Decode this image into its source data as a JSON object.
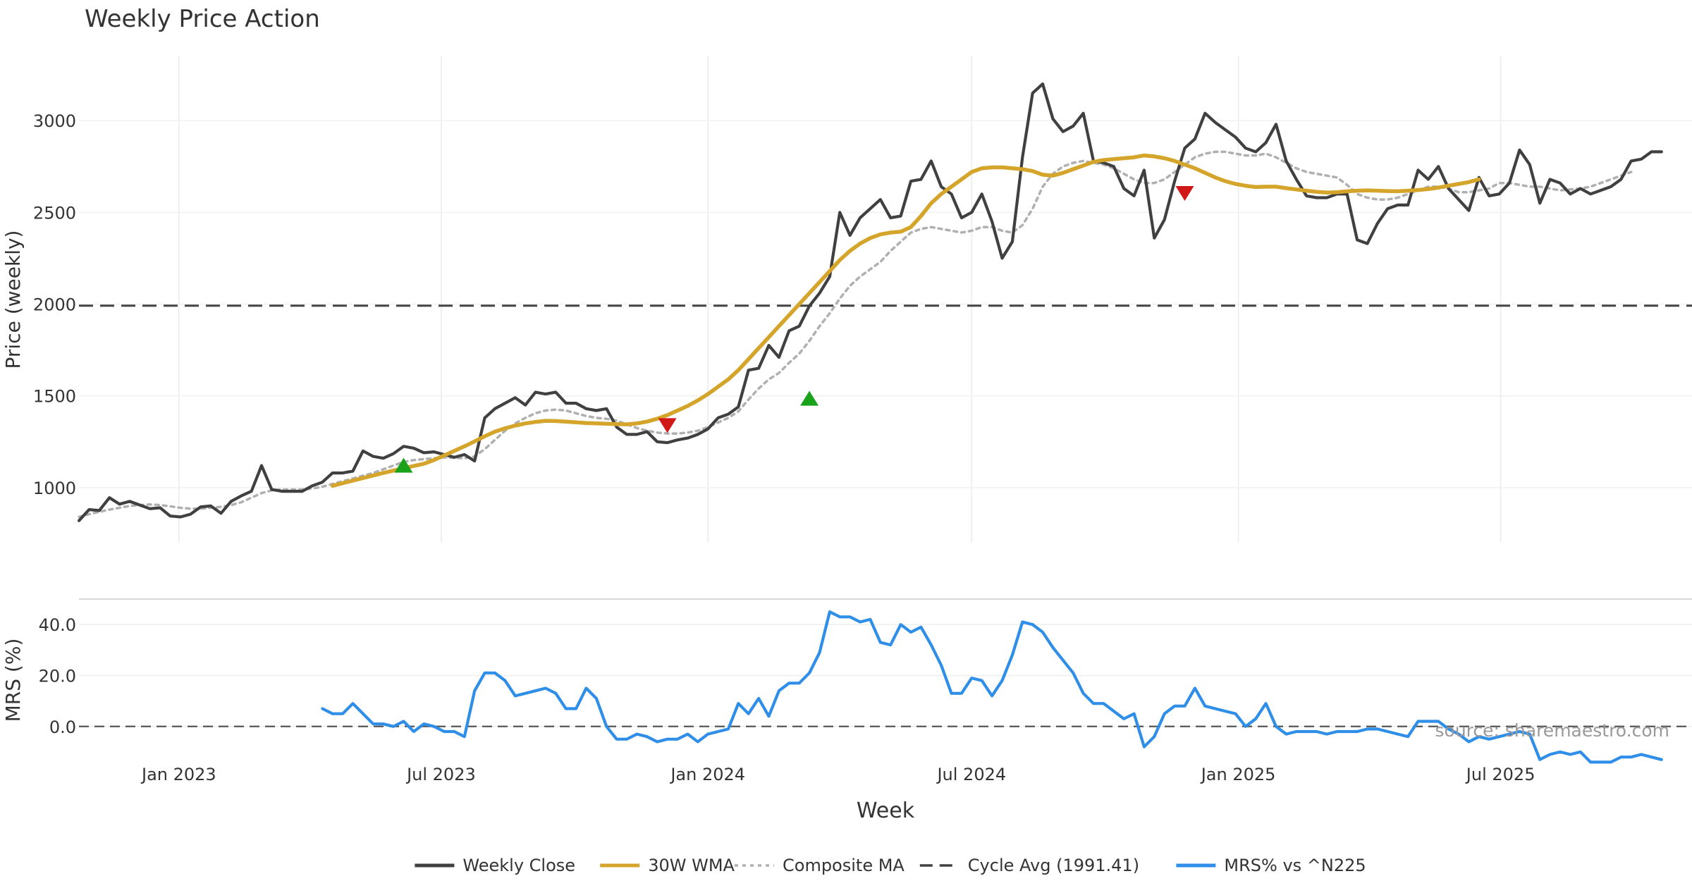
{
  "chart_data": {
    "type": "line",
    "title": "Weekly Price Action",
    "xlabel": "Week",
    "x_ticks": [
      "Jan 2023",
      "Jul 2023",
      "Jan 2024",
      "Jul 2024",
      "Jan 2025",
      "Jul 2025"
    ],
    "x_range": [
      "2022-10-24",
      "2025-11-10"
    ],
    "price_panel": {
      "ylabel": "Price (weekly)",
      "ylim": [
        700,
        3350
      ],
      "y_ticks": [
        "1000",
        "1500",
        "2000",
        "2500",
        "3000"
      ],
      "cycle_avg": 1991.41,
      "series": [
        {
          "name": "Weekly Close",
          "color": "#404040",
          "start": "2022-10-24",
          "values": [
            820,
            880,
            875,
            945,
            910,
            925,
            905,
            885,
            890,
            845,
            840,
            855,
            895,
            900,
            860,
            925,
            955,
            980,
            1120,
            990,
            980,
            980,
            980,
            1010,
            1030,
            1080,
            1080,
            1090,
            1200,
            1170,
            1160,
            1185,
            1225,
            1215,
            1190,
            1195,
            1180,
            1165,
            1180,
            1145,
            1380,
            1430,
            1460,
            1490,
            1450,
            1520,
            1510,
            1520,
            1460,
            1460,
            1430,
            1420,
            1430,
            1330,
            1290,
            1290,
            1305,
            1250,
            1245,
            1260,
            1270,
            1290,
            1320,
            1380,
            1400,
            1440,
            1640,
            1650,
            1775,
            1710,
            1855,
            1880,
            1990,
            2060,
            2150,
            2500,
            2375,
            2470,
            2520,
            2570,
            2470,
            2480,
            2670,
            2680,
            2780,
            2640,
            2600,
            2470,
            2500,
            2600,
            2450,
            2250,
            2340,
            2800,
            3150,
            3200,
            3010,
            2940,
            2970,
            3040,
            2780,
            2770,
            2750,
            2630,
            2590,
            2730,
            2360,
            2460,
            2670,
            2850,
            2900,
            3040,
            2990,
            2950,
            2910,
            2850,
            2830,
            2880,
            2980,
            2780,
            2680,
            2590,
            2580,
            2580,
            2600,
            2600,
            2350,
            2330,
            2440,
            2520,
            2540,
            2540,
            2730,
            2680,
            2750,
            2630,
            2570,
            2510,
            2690,
            2590,
            2600,
            2660,
            2840,
            2760,
            2550,
            2680,
            2660,
            2600,
            2630,
            2600,
            2620,
            2640,
            2680,
            2780,
            2790,
            2830,
            2830
          ]
        },
        {
          "name": "30W WMA",
          "color": "#d4a52a",
          "start": "2023-04-17",
          "values": [
            1010,
            1024,
            1038,
            1052,
            1066,
            1080,
            1093,
            1106,
            1118,
            1130,
            1150,
            1175,
            1200,
            1225,
            1252,
            1280,
            1305,
            1323,
            1338,
            1350,
            1358,
            1364,
            1363,
            1360,
            1356,
            1352,
            1350,
            1348,
            1346,
            1345,
            1350,
            1360,
            1375,
            1395,
            1420,
            1445,
            1475,
            1510,
            1550,
            1590,
            1640,
            1700,
            1760,
            1820,
            1880,
            1940,
            2000,
            2060,
            2120,
            2180,
            2240,
            2290,
            2330,
            2360,
            2380,
            2390,
            2395,
            2420,
            2480,
            2550,
            2600,
            2640,
            2680,
            2720,
            2740,
            2745,
            2745,
            2740,
            2735,
            2725,
            2705,
            2700,
            2715,
            2735,
            2755,
            2775,
            2785,
            2790,
            2795,
            2800,
            2810,
            2805,
            2795,
            2780,
            2760,
            2740,
            2715,
            2690,
            2670,
            2655,
            2645,
            2638,
            2640,
            2640,
            2632,
            2625,
            2618,
            2612,
            2608,
            2610,
            2615,
            2618,
            2620,
            2618,
            2616,
            2615,
            2618,
            2622,
            2627,
            2635,
            2645,
            2655,
            2665,
            2680
          ]
        },
        {
          "name": "Composite MA",
          "color": "#b0b0b0",
          "start": "2022-10-24",
          "values": [
            840,
            855,
            868,
            880,
            890,
            900,
            905,
            908,
            905,
            898,
            890,
            885,
            885,
            890,
            895,
            905,
            920,
            945,
            970,
            985,
            990,
            990,
            990,
            995,
            1005,
            1020,
            1035,
            1050,
            1065,
            1080,
            1100,
            1120,
            1140,
            1150,
            1155,
            1160,
            1165,
            1162,
            1160,
            1170,
            1210,
            1260,
            1310,
            1350,
            1380,
            1405,
            1420,
            1425,
            1420,
            1405,
            1390,
            1380,
            1375,
            1365,
            1345,
            1325,
            1310,
            1300,
            1295,
            1295,
            1300,
            1310,
            1330,
            1355,
            1380,
            1415,
            1480,
            1540,
            1590,
            1625,
            1680,
            1730,
            1800,
            1880,
            1950,
            2030,
            2100,
            2150,
            2190,
            2230,
            2290,
            2340,
            2390,
            2410,
            2420,
            2410,
            2400,
            2390,
            2400,
            2420,
            2420,
            2400,
            2390,
            2430,
            2520,
            2640,
            2710,
            2750,
            2770,
            2780,
            2770,
            2760,
            2740,
            2710,
            2680,
            2660,
            2660,
            2680,
            2720,
            2760,
            2800,
            2820,
            2830,
            2830,
            2820,
            2810,
            2810,
            2820,
            2800,
            2770,
            2740,
            2720,
            2710,
            2700,
            2690,
            2650,
            2600,
            2580,
            2570,
            2570,
            2580,
            2600,
            2620,
            2640,
            2640,
            2630,
            2610,
            2610,
            2620,
            2630,
            2660,
            2660,
            2650,
            2640,
            2640,
            2630,
            2620,
            2625,
            2630,
            2640,
            2660,
            2680,
            2700,
            2720
          ]
        }
      ],
      "buy_signals": [
        {
          "date": "2023-06-05",
          "value": 1120
        },
        {
          "date": "2024-03-11",
          "value": 1485
        }
      ],
      "sell_signals": [
        {
          "date": "2023-12-04",
          "value": 1340
        },
        {
          "date": "2024-11-25",
          "value": 2605
        }
      ]
    },
    "mrs_panel": {
      "ylabel": "MRS (%)",
      "ylim": [
        -15,
        50
      ],
      "y_ticks": [
        "0.0",
        "20.0",
        "40.0"
      ],
      "series": [
        {
          "name": "MRS% vs ^N225",
          "color": "#2f8ee8",
          "start": "2023-04-10",
          "values": [
            7,
            5,
            5,
            9,
            5,
            1,
            1,
            0,
            2,
            -2,
            1,
            0,
            -2,
            -2,
            -4,
            14,
            21,
            21,
            18,
            12,
            13,
            14,
            15,
            13,
            7,
            7,
            15,
            11,
            0,
            -5,
            -5,
            -3,
            -4,
            -6,
            -5,
            -5,
            -3,
            -6,
            -3,
            -2,
            -1,
            9,
            5,
            11,
            4,
            14,
            17,
            17,
            21,
            29,
            45,
            43,
            43,
            41,
            42,
            33,
            32,
            40,
            37,
            39,
            32,
            24,
            13,
            13,
            19,
            18,
            12,
            18,
            28,
            41,
            40,
            37,
            31,
            26,
            21,
            13,
            9,
            9,
            6,
            3,
            5,
            -8,
            -4,
            5,
            8,
            8,
            15,
            8,
            7,
            6,
            5,
            0,
            3,
            9,
            0,
            -3,
            -2,
            -2,
            -2,
            -3,
            -2,
            -2,
            -2,
            -1,
            -1,
            -2,
            -3,
            -4,
            2,
            2,
            2,
            -1,
            -3,
            -6,
            -4,
            -5,
            -4,
            -3,
            -2,
            -3,
            -13,
            -11,
            -10,
            -11,
            -10,
            -14,
            -14,
            -14,
            -12,
            -12,
            -11,
            -12,
            -13
          ]
        }
      ]
    },
    "legend": {
      "placement": "bottom-center",
      "entries": [
        {
          "label": "Weekly Close",
          "color": "#404040",
          "style": "solid"
        },
        {
          "label": "30W WMA",
          "color": "#d4a52a",
          "style": "solid"
        },
        {
          "label": "Composite MA",
          "color": "#b0b0b0",
          "style": "dotted"
        },
        {
          "label": "Cycle Avg (1991.41)",
          "color": "#404040",
          "style": "dashed"
        },
        {
          "label": "MRS% vs ^N225",
          "color": "#2f8ee8",
          "style": "solid"
        }
      ]
    },
    "source_note": "source: sharemaestro.com"
  }
}
